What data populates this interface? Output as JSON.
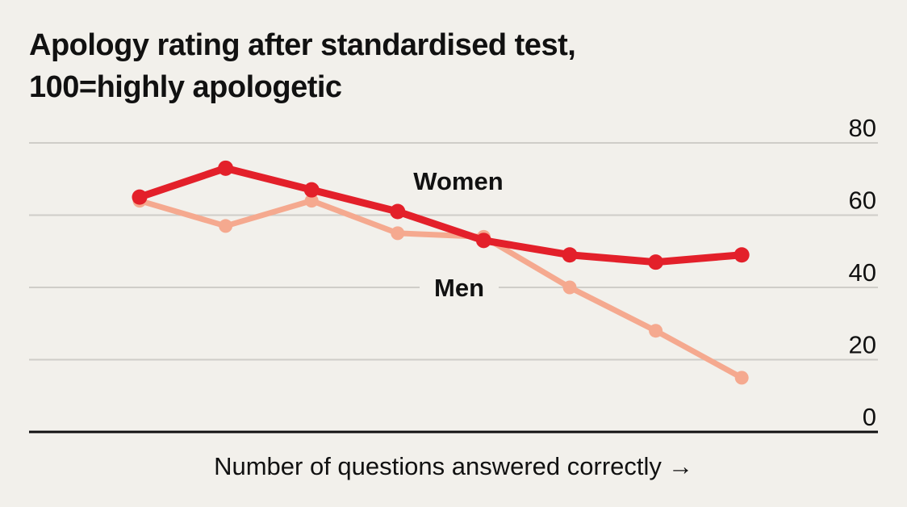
{
  "title_line1": "Apology rating after standardised test,",
  "title_line2": "100=highly apologetic",
  "colors": {
    "background": "#f2f0eb",
    "women": "#e3202a",
    "men": "#f5a98f",
    "grid": "#cfcdc8",
    "axis": "#111111"
  },
  "chart_data": {
    "type": "line",
    "x": [
      1,
      2,
      3,
      4,
      5,
      6,
      7,
      8
    ],
    "xlabel": "Number of questions answered correctly",
    "xlabel_arrow": "→",
    "ylabel": "",
    "ylim": [
      0,
      80
    ],
    "yticks": [
      "0",
      "20",
      "40",
      "60",
      "80"
    ],
    "grid": true,
    "series": [
      {
        "name": "Women",
        "values": [
          65,
          73,
          67,
          61,
          53,
          49,
          47,
          49
        ]
      },
      {
        "name": "Men",
        "values": [
          64,
          57,
          64,
          55,
          54,
          40,
          28,
          15
        ]
      }
    ]
  }
}
